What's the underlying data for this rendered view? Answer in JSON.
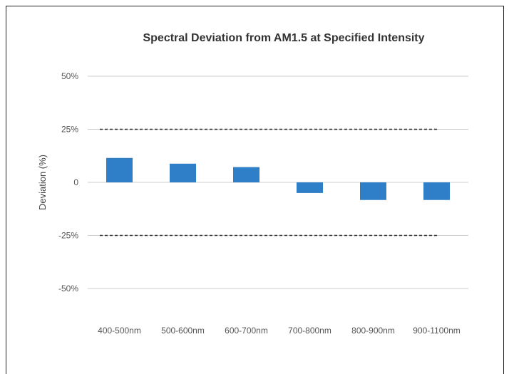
{
  "chart_data": {
    "type": "bar",
    "title": "Spectral Deviation from AM1.5 at Specified Intensity",
    "xlabel": "",
    "ylabel": "Deviation (%)",
    "categories": [
      "400-500nm",
      "500-600nm",
      "600-700nm",
      "700-800nm",
      "800-900nm",
      "900-1100nm"
    ],
    "values": [
      11.5,
      8.8,
      7.2,
      -5.0,
      -8.3,
      -8.3
    ],
    "unit": "%",
    "ylim": [
      -50,
      50
    ],
    "yticks": [
      {
        "value": 50,
        "label": "50%"
      },
      {
        "value": 25,
        "label": "25%"
      },
      {
        "value": 0,
        "label": "0"
      },
      {
        "value": -25,
        "label": "-25%"
      },
      {
        "value": -50,
        "label": "-50%"
      }
    ],
    "reference_lines": [
      {
        "value": 25,
        "style": "dashed"
      },
      {
        "value": -25,
        "style": "dashed"
      }
    ],
    "grid": true,
    "colors": {
      "bar": "#2e7fc8",
      "grid": "#cccccc",
      "reference": "#333333"
    }
  }
}
